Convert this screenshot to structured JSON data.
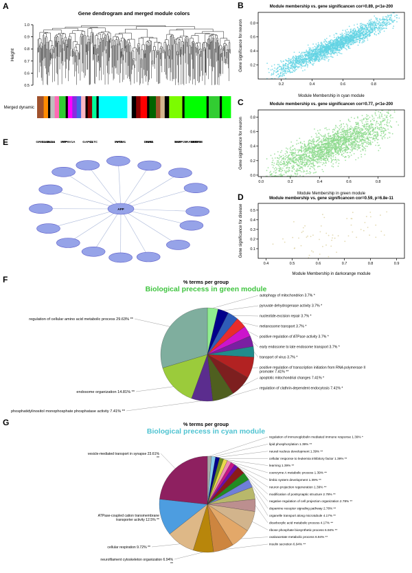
{
  "panels": {
    "a": "A",
    "b": "B",
    "c": "C",
    "d": "D",
    "e": "E",
    "f": "F",
    "g": "G"
  },
  "chart_data": {
    "dendrogram": {
      "type": "dendrogram",
      "title": "Gene dendrogram and merged module colors",
      "ylabel": "Height",
      "yticks": [
        0.5,
        0.6,
        0.7,
        0.8,
        0.9,
        1.0
      ],
      "ylim": [
        0.5,
        1.0
      ],
      "band_label": "Merged dynamic",
      "seed": 11,
      "band_segments": [
        {
          "c": "#A0522D",
          "w": 3
        },
        {
          "c": "#FF8C00",
          "w": 2
        },
        {
          "c": "#000000",
          "w": 1
        },
        {
          "c": "#BEBEBE",
          "w": 2
        },
        {
          "c": "#FF69B4",
          "w": 2
        },
        {
          "c": "#32CD32",
          "w": 3
        },
        {
          "c": "#000000",
          "w": 1
        },
        {
          "c": "#FF00FF",
          "w": 2
        },
        {
          "c": "#8A2BE2",
          "w": 2
        },
        {
          "c": "#4169E1",
          "w": 2
        },
        {
          "c": "#FFB6C1",
          "w": 2
        },
        {
          "c": "#000000",
          "w": 1
        },
        {
          "c": "#8B0000",
          "w": 2
        },
        {
          "c": "#00FA9A",
          "w": 2
        },
        {
          "c": "#000000",
          "w": 1
        },
        {
          "c": "#00FFFF",
          "w": 13
        },
        {
          "c": "#E0FFFF",
          "w": 2
        },
        {
          "c": "#000000",
          "w": 2
        },
        {
          "c": "#8B0000",
          "w": 2
        },
        {
          "c": "#FF0000",
          "w": 3
        },
        {
          "c": "#000000",
          "w": 1
        },
        {
          "c": "#006400",
          "w": 3
        },
        {
          "c": "#A0522D",
          "w": 2
        },
        {
          "c": "#D2B48C",
          "w": 2
        },
        {
          "c": "#000000",
          "w": 2
        },
        {
          "c": "#7CFC00",
          "w": 6
        },
        {
          "c": "#000000",
          "w": 1
        },
        {
          "c": "#00FF00",
          "w": 10
        },
        {
          "c": "#000000",
          "w": 1
        },
        {
          "c": "#32CD32",
          "w": 5
        },
        {
          "c": "#000000",
          "w": 1
        },
        {
          "c": "#00FF00",
          "w": 4
        }
      ]
    },
    "scatters": [
      {
        "id": "cyan",
        "type": "scatter",
        "title": "Module membership vs. gene significancen cor=0.89, p<1e-200",
        "xlabel": "Module Membership in cyan module",
        "ylabel": "Gene significance for neuron",
        "xticks": [
          0.2,
          0.4,
          0.6,
          0.8
        ],
        "yticks": [
          0.2,
          0.4,
          0.6,
          0.8
        ],
        "xlim": [
          0.05,
          1.0
        ],
        "ylim": [
          0.0,
          0.95
        ],
        "trend_x": [
          0.1,
          0.97
        ],
        "trend_y": [
          0.04,
          0.9
        ],
        "noise_sd": 0.06,
        "n_points": 2200,
        "point_color": "#63D3E3",
        "seed": 3
      },
      {
        "id": "green",
        "type": "scatter",
        "title": "Module membership vs. gene significancen cor=0.77, p<1e-200",
        "xlabel": "Module Membership in green module",
        "ylabel": "Gene significance for neuron",
        "xticks": [
          0.0,
          0.2,
          0.4,
          0.6,
          0.8
        ],
        "yticks": [
          0.0,
          0.2,
          0.4,
          0.6,
          0.8
        ],
        "xlim": [
          -0.02,
          0.98
        ],
        "ylim": [
          -0.02,
          0.9
        ],
        "trend_x": [
          0.02,
          0.94
        ],
        "trend_y": [
          0.03,
          0.76
        ],
        "noise_sd": 0.11,
        "n_points": 2200,
        "point_color": "#8CD98C",
        "seed": 7
      },
      {
        "id": "darkorange",
        "type": "scatter",
        "title": "Module membership vs. gene significancen cor=0.59, p=6.8e-11",
        "xlabel": "Module Membership in darkorange module",
        "ylabel": "Gene significance for disease",
        "xticks": [
          0.4,
          0.5,
          0.6,
          0.7,
          0.8,
          0.9
        ],
        "yticks": [
          0.1,
          0.2,
          0.3,
          0.4,
          0.5
        ],
        "xlim": [
          0.37,
          0.93
        ],
        "ylim": [
          0.0,
          0.57
        ],
        "trend_x": [
          0.4,
          0.9
        ],
        "trend_y": [
          0.1,
          0.4
        ],
        "noise_sd": 0.1,
        "n_points": 62,
        "point_color": "#DCCF9E",
        "seed": 13
      }
    ],
    "network": {
      "type": "network",
      "center": {
        "label": "APP"
      },
      "nodes": [
        {
          "label": "SYT1"
        },
        {
          "label": "SYN1"
        },
        {
          "label": "SNAP25"
        },
        {
          "label": "VAMP2"
        },
        {
          "label": "STX1B"
        },
        {
          "label": "RAB3A"
        },
        {
          "label": "NSF"
        },
        {
          "label": "DNM1"
        },
        {
          "label": "AP2M1"
        },
        {
          "label": "CLTC"
        },
        {
          "label": "ATP6V1A"
        },
        {
          "label": "CAMK2A"
        },
        {
          "label": "GRIN1"
        },
        {
          "label": "DLG4"
        },
        {
          "label": "SYP"
        },
        {
          "label": "GAP43"
        }
      ]
    },
    "pies": [
      {
        "id": "green-module",
        "type": "pie",
        "title": "% terms per group",
        "subtitle": "Biological precess in green module",
        "subtitle_color": "#3FC43F",
        "slices": [
          {
            "label": "autophagy of mitochondrion 3.7% *",
            "value": 3.7,
            "color": "#90EE90",
            "side": "right"
          },
          {
            "label": "pyruvate dehydrogenase activity 3.7% *",
            "value": 3.7,
            "color": "#00008B",
            "side": "right"
          },
          {
            "label": "nucleotide-excision repair 3.7% *",
            "value": 3.7,
            "color": "#2E5CB8",
            "side": "right"
          },
          {
            "label": "melanosome transport 3.7% *",
            "value": 3.7,
            "color": "#E82C2C",
            "side": "right"
          },
          {
            "label": "positive regulation of ATPase activity 3.7% *",
            "value": 3.7,
            "color": "#CC14CC",
            "side": "right"
          },
          {
            "label": "early endosome to late endosome transport 3.7% *",
            "value": 3.7,
            "color": "#7A1FA2",
            "side": "right"
          },
          {
            "label": "transport of virus 3.7% *",
            "value": 3.7,
            "color": "#1F8C8C",
            "side": "right"
          },
          {
            "label": "positive regulation of transcription initiation from RNA polymerase II",
            "label2": "promoter 7.41% **",
            "value": 7.41,
            "color": "#B22222",
            "side": "right"
          },
          {
            "label": "apoptotic mitochondrial changes 7.41% *",
            "value": 7.41,
            "color": "#7D1F1F",
            "side": "right"
          },
          {
            "label": "regulation of clathrin-dependent endocytosis 7.41% *",
            "value": 7.41,
            "color": "#4F5F1F",
            "side": "right"
          },
          {
            "label": "phosphatidylinositol monophosphate phosphatase activity 7.41% **",
            "value": 7.41,
            "color": "#5B2D8E",
            "side": "left",
            "lp": [
              178,
              196
            ]
          },
          {
            "label": "endosome organization 14.81% **",
            "value": 14.81,
            "color": "#9BCB3B",
            "side": "left",
            "lp": [
              192,
              168
            ]
          },
          {
            "label": "regulation of cellular amino acid metabolic process 29.63% **",
            "value": 29.63,
            "color": "#7FAE9E",
            "side": "left",
            "lp": [
              190,
              62
            ]
          }
        ]
      },
      {
        "id": "cyan-module",
        "type": "pie",
        "title": "% terms per group",
        "subtitle": "Biological precess in cyan module",
        "subtitle_color": "#4FC3D1",
        "slices": [
          {
            "label": "regulation of immunoglobulin mediated immune response 1.39% *",
            "value": 1.39,
            "color": "#A9A9A9",
            "side": "right"
          },
          {
            "label": "lipid phosphorylation 1.39% **",
            "value": 1.39,
            "color": "#87CEEB",
            "side": "right"
          },
          {
            "label": "neural nucleus development 1.39% **",
            "value": 1.39,
            "color": "#00008B",
            "side": "right"
          },
          {
            "label": "cellular response to leukemia inhibitory factor 1.39% **",
            "value": 1.39,
            "color": "#6B8E23",
            "side": "right"
          },
          {
            "label": "learning 1.39% **",
            "value": 1.39,
            "color": "#E8D94B",
            "side": "right"
          },
          {
            "label": "coenzyme A metabolic process 1.39% **",
            "value": 1.39,
            "color": "#F08CB4",
            "side": "right"
          },
          {
            "label": "limbic system development 1.39% **",
            "value": 1.39,
            "color": "#C71585",
            "side": "right"
          },
          {
            "label": "neuron projection regeneration 1.39% **",
            "value": 1.39,
            "color": "#6A0DAD",
            "side": "right"
          },
          {
            "label": "modification of postsynaptic structure 2.78% **",
            "value": 2.78,
            "color": "#8B1A1A",
            "side": "right"
          },
          {
            "label": "negative regulation of cell projection organization 2.78% **",
            "value": 2.78,
            "color": "#228B22",
            "side": "right"
          },
          {
            "label": "dopamine receptor signaling pathway 2.78% **",
            "value": 2.78,
            "color": "#6F7FD9",
            "side": "right"
          },
          {
            "label": "organelle transport along microtubule 4.17% **",
            "value": 4.17,
            "color": "#B8B86B",
            "side": "right"
          },
          {
            "label": "dicarboxylic acid metabolic process 4.17% **",
            "value": 4.17,
            "color": "#BC8F8F",
            "side": "right"
          },
          {
            "label": "ribose phosphate biosynthetic process 6.94% **",
            "value": 6.94,
            "color": "#D2B48C",
            "side": "right"
          },
          {
            "label": "oxaloacetate metabolic process 6.94% **",
            "value": 6.94,
            "color": "#E3A869",
            "side": "right"
          },
          {
            "label": "insulin secretion 6.94% **",
            "value": 6.94,
            "color": "#CD853F",
            "side": "right"
          },
          {
            "label": "neurofilament cytoskeleton organization 6.94%",
            "label2": "**",
            "value": 6.94,
            "color": "#B8860B",
            "side": "left",
            "lp": [
              248,
              204
            ]
          },
          {
            "label": "cellular respiration 9.72% **",
            "value": 9.72,
            "color": "#DEB887",
            "side": "left",
            "lp": [
              215,
              186
            ]
          },
          {
            "label": "ATPase-coupled cation transmembrane",
            "label2": "transporter activity 12.5% **",
            "value": 12.5,
            "color": "#4D9DE0",
            "side": "left",
            "lp": [
              228,
              140
            ]
          },
          {
            "label": "vesicle-mediated transport in synapse 23.61%",
            "label2": "**",
            "value": 23.61,
            "color": "#8E2060",
            "side": "left",
            "lp": [
              228,
              50
            ]
          }
        ]
      }
    ]
  }
}
